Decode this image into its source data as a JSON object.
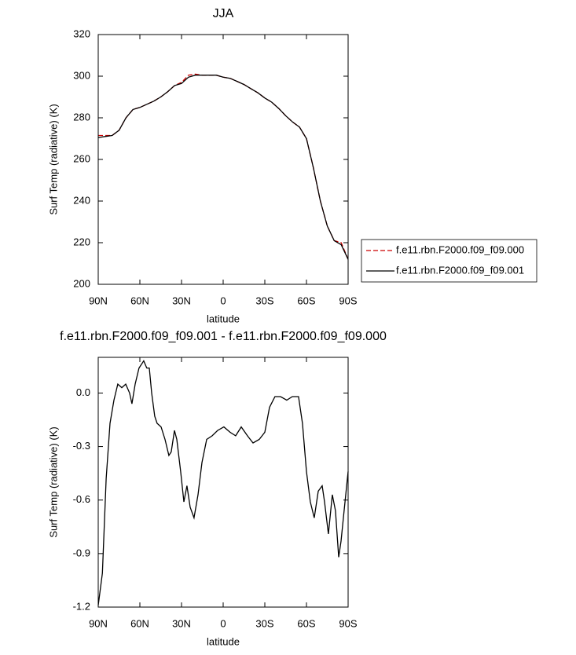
{
  "chart_data": [
    {
      "type": "line",
      "title": "JJA",
      "x_label": "latitude",
      "y_label": "Surf Temp (radiative) (K)",
      "x": [
        90,
        85,
        80,
        75,
        70,
        65,
        60,
        55,
        50,
        45,
        40,
        35,
        30,
        25,
        20,
        15,
        10,
        5,
        0,
        -5,
        -10,
        -15,
        -20,
        -25,
        -30,
        -35,
        -40,
        -45,
        -50,
        -55,
        -60,
        -65,
        -70,
        -75,
        -80,
        -85,
        -90
      ],
      "series": [
        {
          "name": "f.e11.rbn.F2000.f09_f09.000",
          "color": "#cc0000",
          "linestyle": "dashed",
          "values": [
            271.5,
            271.5,
            271.5,
            274,
            280,
            284,
            285,
            286.5,
            288,
            290,
            292.5,
            295.5,
            297,
            300.5,
            301,
            300.5,
            300.5,
            300.5,
            299.5,
            299,
            297.5,
            296,
            294,
            292,
            289.5,
            287.5,
            284.5,
            281,
            278,
            275.5,
            270,
            256,
            240,
            228,
            221,
            220,
            212
          ]
        },
        {
          "name": "f.e11.rbn.F2000.f09_f09.001",
          "color": "#000000",
          "linestyle": "solid",
          "values": [
            270.5,
            271,
            271.5,
            274,
            280,
            284,
            285,
            286.5,
            288,
            290,
            292.5,
            295.5,
            296.5,
            299.5,
            300.5,
            300.5,
            300.5,
            300.5,
            299.5,
            299,
            297.5,
            296,
            294,
            292,
            289.5,
            287.5,
            284.5,
            281,
            278,
            275.5,
            270,
            256,
            240,
            228,
            221,
            219,
            212
          ]
        }
      ],
      "xlim": [
        90,
        -90
      ],
      "xticks": [
        {
          "value": 90,
          "label": "90N"
        },
        {
          "value": 60,
          "label": "60N"
        },
        {
          "value": 30,
          "label": "30N"
        },
        0,
        {
          "value": -30,
          "label": "30S"
        },
        {
          "value": -60,
          "label": "60S"
        },
        {
          "value": -90,
          "label": "90S"
        }
      ],
      "ylim": [
        200,
        320
      ],
      "yticks": [
        200,
        220,
        240,
        260,
        280,
        300,
        320
      ],
      "legend": "right"
    },
    {
      "type": "line",
      "title": "f.e11.rbn.F2000.f09_f09.001 - f.e11.rbn.F2000.f09_f09.000",
      "x_label": "latitude",
      "y_label": "Surf Temp (radiative) (K)",
      "x": [
        90,
        87,
        84.3,
        81.5,
        78.7,
        75.9,
        73,
        70.2,
        67.4,
        65.7,
        63.4,
        60.6,
        57.2,
        55,
        53.2,
        51.5,
        49.3,
        47.6,
        44.7,
        41.9,
        39.1,
        37.4,
        35.1,
        33.4,
        30.6,
        28.3,
        26.1,
        23.8,
        21,
        18.1,
        15.3,
        11.9,
        7.9,
        4,
        -0.5,
        -5,
        -9,
        -13,
        -17.5,
        -21.5,
        -26,
        -30,
        -33.4,
        -37.3,
        -41.3,
        -45.8,
        -49.8,
        -54.3,
        -57.1,
        -60,
        -62.8,
        -65.6,
        -68.5,
        -71.3,
        -73,
        -75.8,
        -78.6,
        -80.9,
        -83.2,
        -84.9,
        -87.1,
        -90
      ],
      "values": [
        -1.19,
        -1.01,
        -0.48,
        -0.17,
        -0.04,
        0.05,
        0.03,
        0.05,
        0.0,
        -0.06,
        0.05,
        0.14,
        0.18,
        0.14,
        0.14,
        0.0,
        -0.13,
        -0.17,
        -0.19,
        -0.26,
        -0.35,
        -0.33,
        -0.21,
        -0.26,
        -0.44,
        -0.61,
        -0.52,
        -0.64,
        -0.7,
        -0.57,
        -0.39,
        -0.26,
        -0.24,
        -0.21,
        -0.19,
        -0.22,
        -0.24,
        -0.19,
        -0.24,
        -0.28,
        -0.26,
        -0.22,
        -0.08,
        -0.02,
        -0.02,
        -0.04,
        -0.02,
        -0.02,
        -0.17,
        -0.44,
        -0.61,
        -0.7,
        -0.55,
        -0.52,
        -0.61,
        -0.79,
        -0.57,
        -0.66,
        -0.92,
        -0.83,
        -0.66,
        -0.44
      ],
      "color": "#000000",
      "xlim": [
        90,
        -90
      ],
      "xticks": [
        {
          "value": 90,
          "label": "90N"
        },
        {
          "value": 60,
          "label": "60N"
        },
        {
          "value": 30,
          "label": "30N"
        },
        0,
        {
          "value": -30,
          "label": "30S"
        },
        {
          "value": -60,
          "label": "60S"
        },
        {
          "value": -90,
          "label": "90S"
        }
      ],
      "ylim": [
        -1.2,
        0.2
      ],
      "yticks": [
        -1.2,
        -0.9,
        -0.6,
        -0.3,
        {
          "value": 0,
          "label": "0.0"
        }
      ]
    }
  ]
}
